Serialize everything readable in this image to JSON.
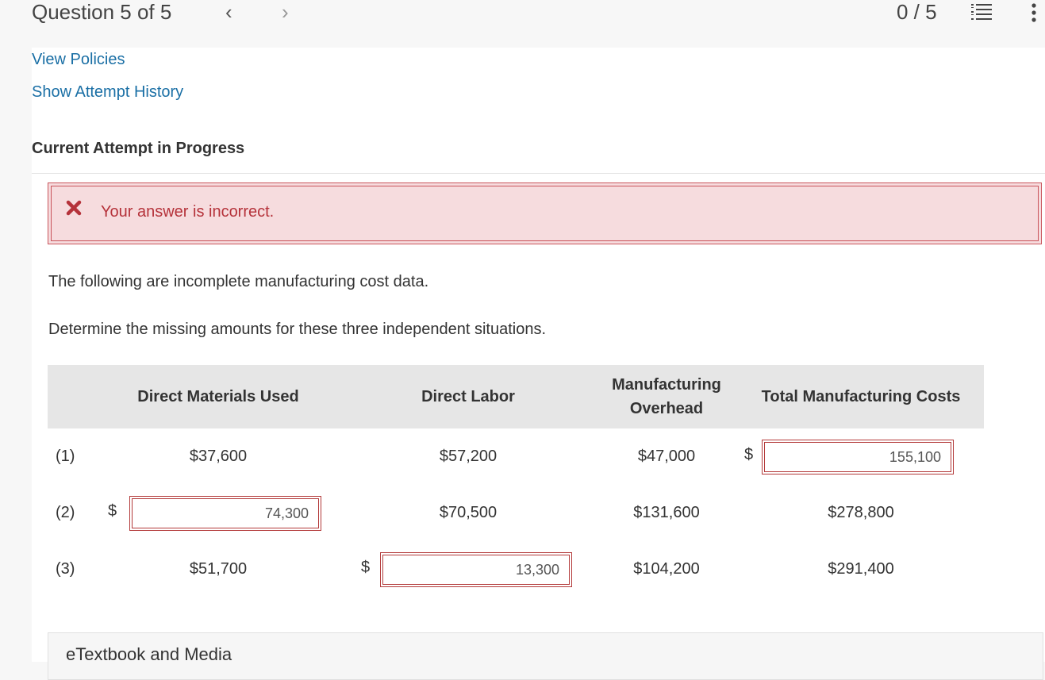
{
  "header": {
    "question_label": "Question 5 of 5",
    "prev_arrow": "‹",
    "next_arrow": "›",
    "score": "0 / 5",
    "list_icon": "numbered-list-icon",
    "menu_icon": "more-vertical-icon"
  },
  "links": {
    "view_policies": "View Policies",
    "attempt_history": "Show Attempt History"
  },
  "attempt_heading": "Current Attempt in Progress",
  "alert": {
    "icon": "close-icon",
    "message": "Your answer is incorrect.",
    "color": "#b5323a",
    "background": "#f6dcde"
  },
  "question": {
    "intro": "The following are incomplete manufacturing cost data.",
    "instruction": "Determine the missing amounts for these three independent situations."
  },
  "table": {
    "headers": {
      "materials": "Direct Materials Used",
      "labor": "Direct Labor",
      "overhead_line1": "Manufacturing",
      "overhead_line2": "Overhead",
      "total": "Total Manufacturing Costs"
    },
    "rows": [
      {
        "label": "(1)",
        "materials": "$37,600",
        "labor": "$57,200",
        "overhead": "$47,000",
        "total_prefix": "$",
        "total_input": "155,100"
      },
      {
        "label": "(2)",
        "materials_prefix": "$",
        "materials_input": "74,300",
        "labor": "$70,500",
        "overhead": "$131,600",
        "total": "$278,800"
      },
      {
        "label": "(3)",
        "materials": "$51,700",
        "labor_prefix": "$",
        "labor_input": "13,300",
        "overhead": "$104,200",
        "total": "$291,400"
      }
    ]
  },
  "etextbook": "eTextbook and Media"
}
